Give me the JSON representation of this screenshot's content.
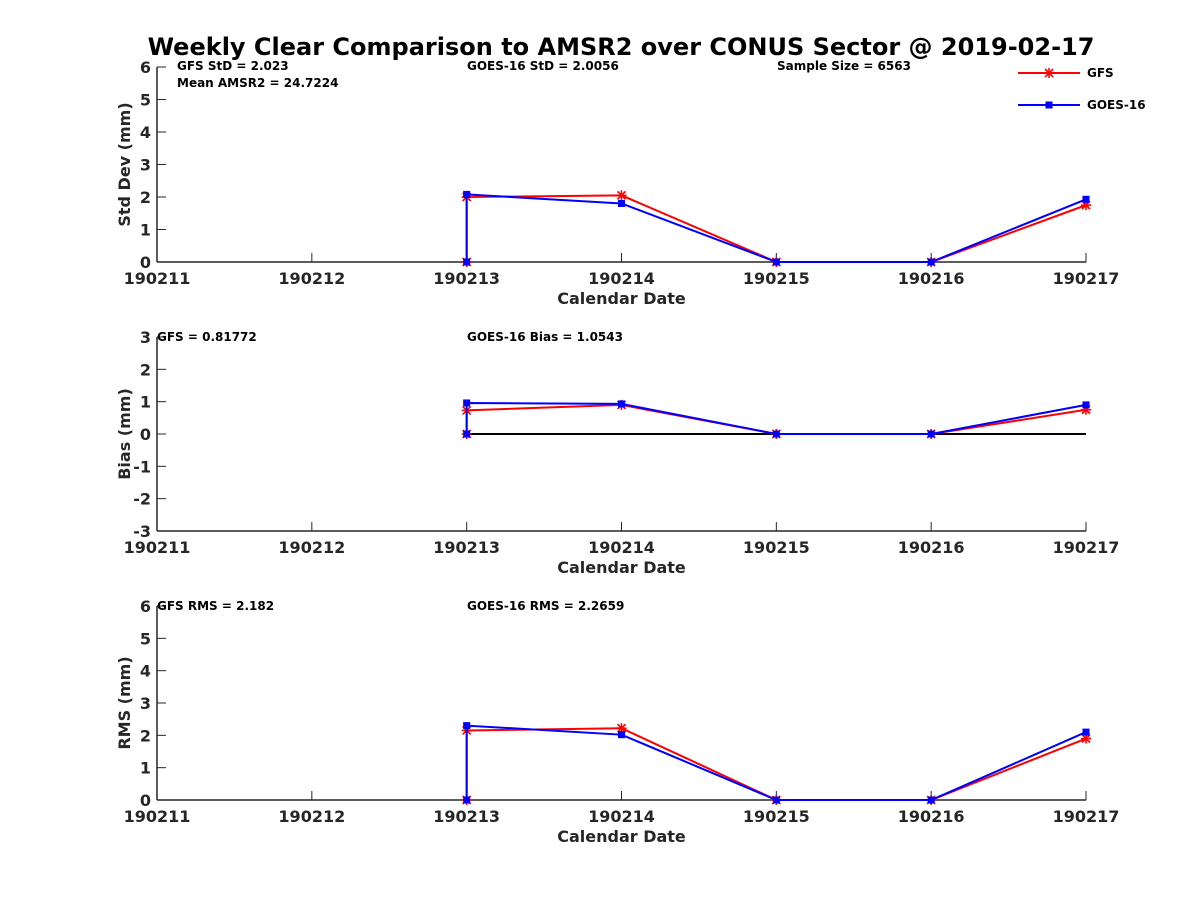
{
  "figure": {
    "title": "Weekly Clear Comparison to AMSR2 over CONUS Sector @ 2019-02-17"
  },
  "legend": {
    "placement": "top-right",
    "entries": [
      {
        "name": "GFS",
        "color": "#ff0000",
        "marker": "asterisk"
      },
      {
        "name": "GOES-16",
        "color": "#0000ff",
        "marker": "square"
      }
    ]
  },
  "chart_data": [
    {
      "type": "line",
      "xlabel": "Calendar Date",
      "ylabel": "Std Dev (mm)",
      "ylim": [
        0,
        6
      ],
      "yticks": [
        0,
        1,
        2,
        3,
        4,
        5,
        6
      ],
      "xticks": [
        "190211",
        "190212",
        "190213",
        "190214",
        "190215",
        "190216",
        "190217"
      ],
      "annotations": [
        "GFS StD = 2.023",
        "Mean AMSR2 = 24.7224",
        "GOES-16 StD = 2.0056",
        "Sample Size = 6563"
      ],
      "reference_line": null,
      "series": [
        {
          "name": "GFS",
          "color": "#ff0000",
          "x": [
            "190213",
            "190213",
            "190214",
            "190215",
            "190216",
            "190217"
          ],
          "values": [
            0,
            2.0,
            2.05,
            0,
            0,
            1.75
          ]
        },
        {
          "name": "GOES-16",
          "color": "#0000ff",
          "x": [
            "190213",
            "190213",
            "190214",
            "190215",
            "190216",
            "190217"
          ],
          "values": [
            0,
            2.08,
            1.8,
            0,
            0,
            1.93
          ]
        }
      ]
    },
    {
      "type": "line",
      "xlabel": "Calendar Date",
      "ylabel": "Bias (mm)",
      "ylim": [
        -3,
        3
      ],
      "yticks": [
        -3,
        -2,
        -1,
        0,
        1,
        2,
        3
      ],
      "xticks": [
        "190211",
        "190212",
        "190213",
        "190214",
        "190215",
        "190216",
        "190217"
      ],
      "annotations": [
        "GFS = 0.81772",
        "GOES-16 Bias  = 1.0543"
      ],
      "reference_line": {
        "y": 0,
        "from": "190213",
        "to": "190217",
        "color": "#000000"
      },
      "series": [
        {
          "name": "GFS",
          "color": "#ff0000",
          "x": [
            "190213",
            "190213",
            "190214",
            "190215",
            "190216",
            "190217"
          ],
          "values": [
            0,
            0.73,
            0.9,
            0,
            0,
            0.75
          ]
        },
        {
          "name": "GOES-16",
          "color": "#0000ff",
          "x": [
            "190213",
            "190213",
            "190214",
            "190215",
            "190216",
            "190217"
          ],
          "values": [
            0,
            0.96,
            0.93,
            0,
            0,
            0.9
          ]
        }
      ]
    },
    {
      "type": "line",
      "xlabel": "Calendar Date",
      "ylabel": "RMS (mm)",
      "ylim": [
        0,
        6
      ],
      "yticks": [
        0,
        1,
        2,
        3,
        4,
        5,
        6
      ],
      "xticks": [
        "190211",
        "190212",
        "190213",
        "190214",
        "190215",
        "190216",
        "190217"
      ],
      "annotations": [
        "GFS RMS = 2.182",
        "GOES-16 RMS = 2.2659"
      ],
      "reference_line": null,
      "series": [
        {
          "name": "GFS",
          "color": "#ff0000",
          "x": [
            "190213",
            "190213",
            "190214",
            "190215",
            "190216",
            "190217"
          ],
          "values": [
            0,
            2.15,
            2.22,
            0,
            0,
            1.9
          ]
        },
        {
          "name": "GOES-16",
          "color": "#0000ff",
          "x": [
            "190213",
            "190213",
            "190214",
            "190215",
            "190216",
            "190217"
          ],
          "values": [
            0,
            2.3,
            2.02,
            0,
            0,
            2.1
          ]
        }
      ]
    }
  ]
}
